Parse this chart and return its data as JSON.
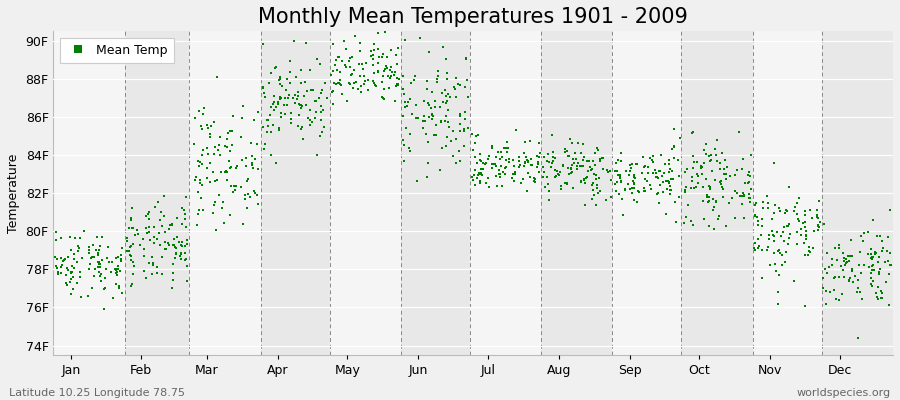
{
  "title": "Monthly Mean Temperatures 1901 - 2009",
  "ylabel": "Temperature",
  "xlabel_labels": [
    "Jan",
    "Feb",
    "Mar",
    "Apr",
    "May",
    "Jun",
    "Jul",
    "Aug",
    "Sep",
    "Oct",
    "Nov",
    "Dec"
  ],
  "ytick_labels": [
    "74F",
    "76F",
    "78F",
    "80F",
    "82F",
    "84F",
    "86F",
    "88F",
    "90F"
  ],
  "ytick_values": [
    74,
    76,
    78,
    80,
    82,
    84,
    86,
    88,
    90
  ],
  "ylim": [
    73.5,
    90.5
  ],
  "legend_label": "Mean Temp",
  "dot_color": "#008000",
  "background_color": "#f0f0f0",
  "plot_bg_light": "#f5f5f5",
  "plot_bg_dark": "#e8e8e8",
  "footer_left": "Latitude 10.25 Longitude 78.75",
  "footer_right": "worldspecies.org",
  "title_fontsize": 15,
  "axis_fontsize": 9,
  "footer_fontsize": 8,
  "monthly_means": [
    78.3,
    79.2,
    83.5,
    86.8,
    88.2,
    86.2,
    83.5,
    83.2,
    82.8,
    82.5,
    80.0,
    78.2
  ],
  "monthly_stds": [
    0.9,
    1.1,
    1.5,
    1.2,
    0.9,
    1.6,
    0.7,
    0.8,
    0.8,
    1.0,
    1.3,
    1.1
  ],
  "n_years": 109,
  "seed": 42
}
